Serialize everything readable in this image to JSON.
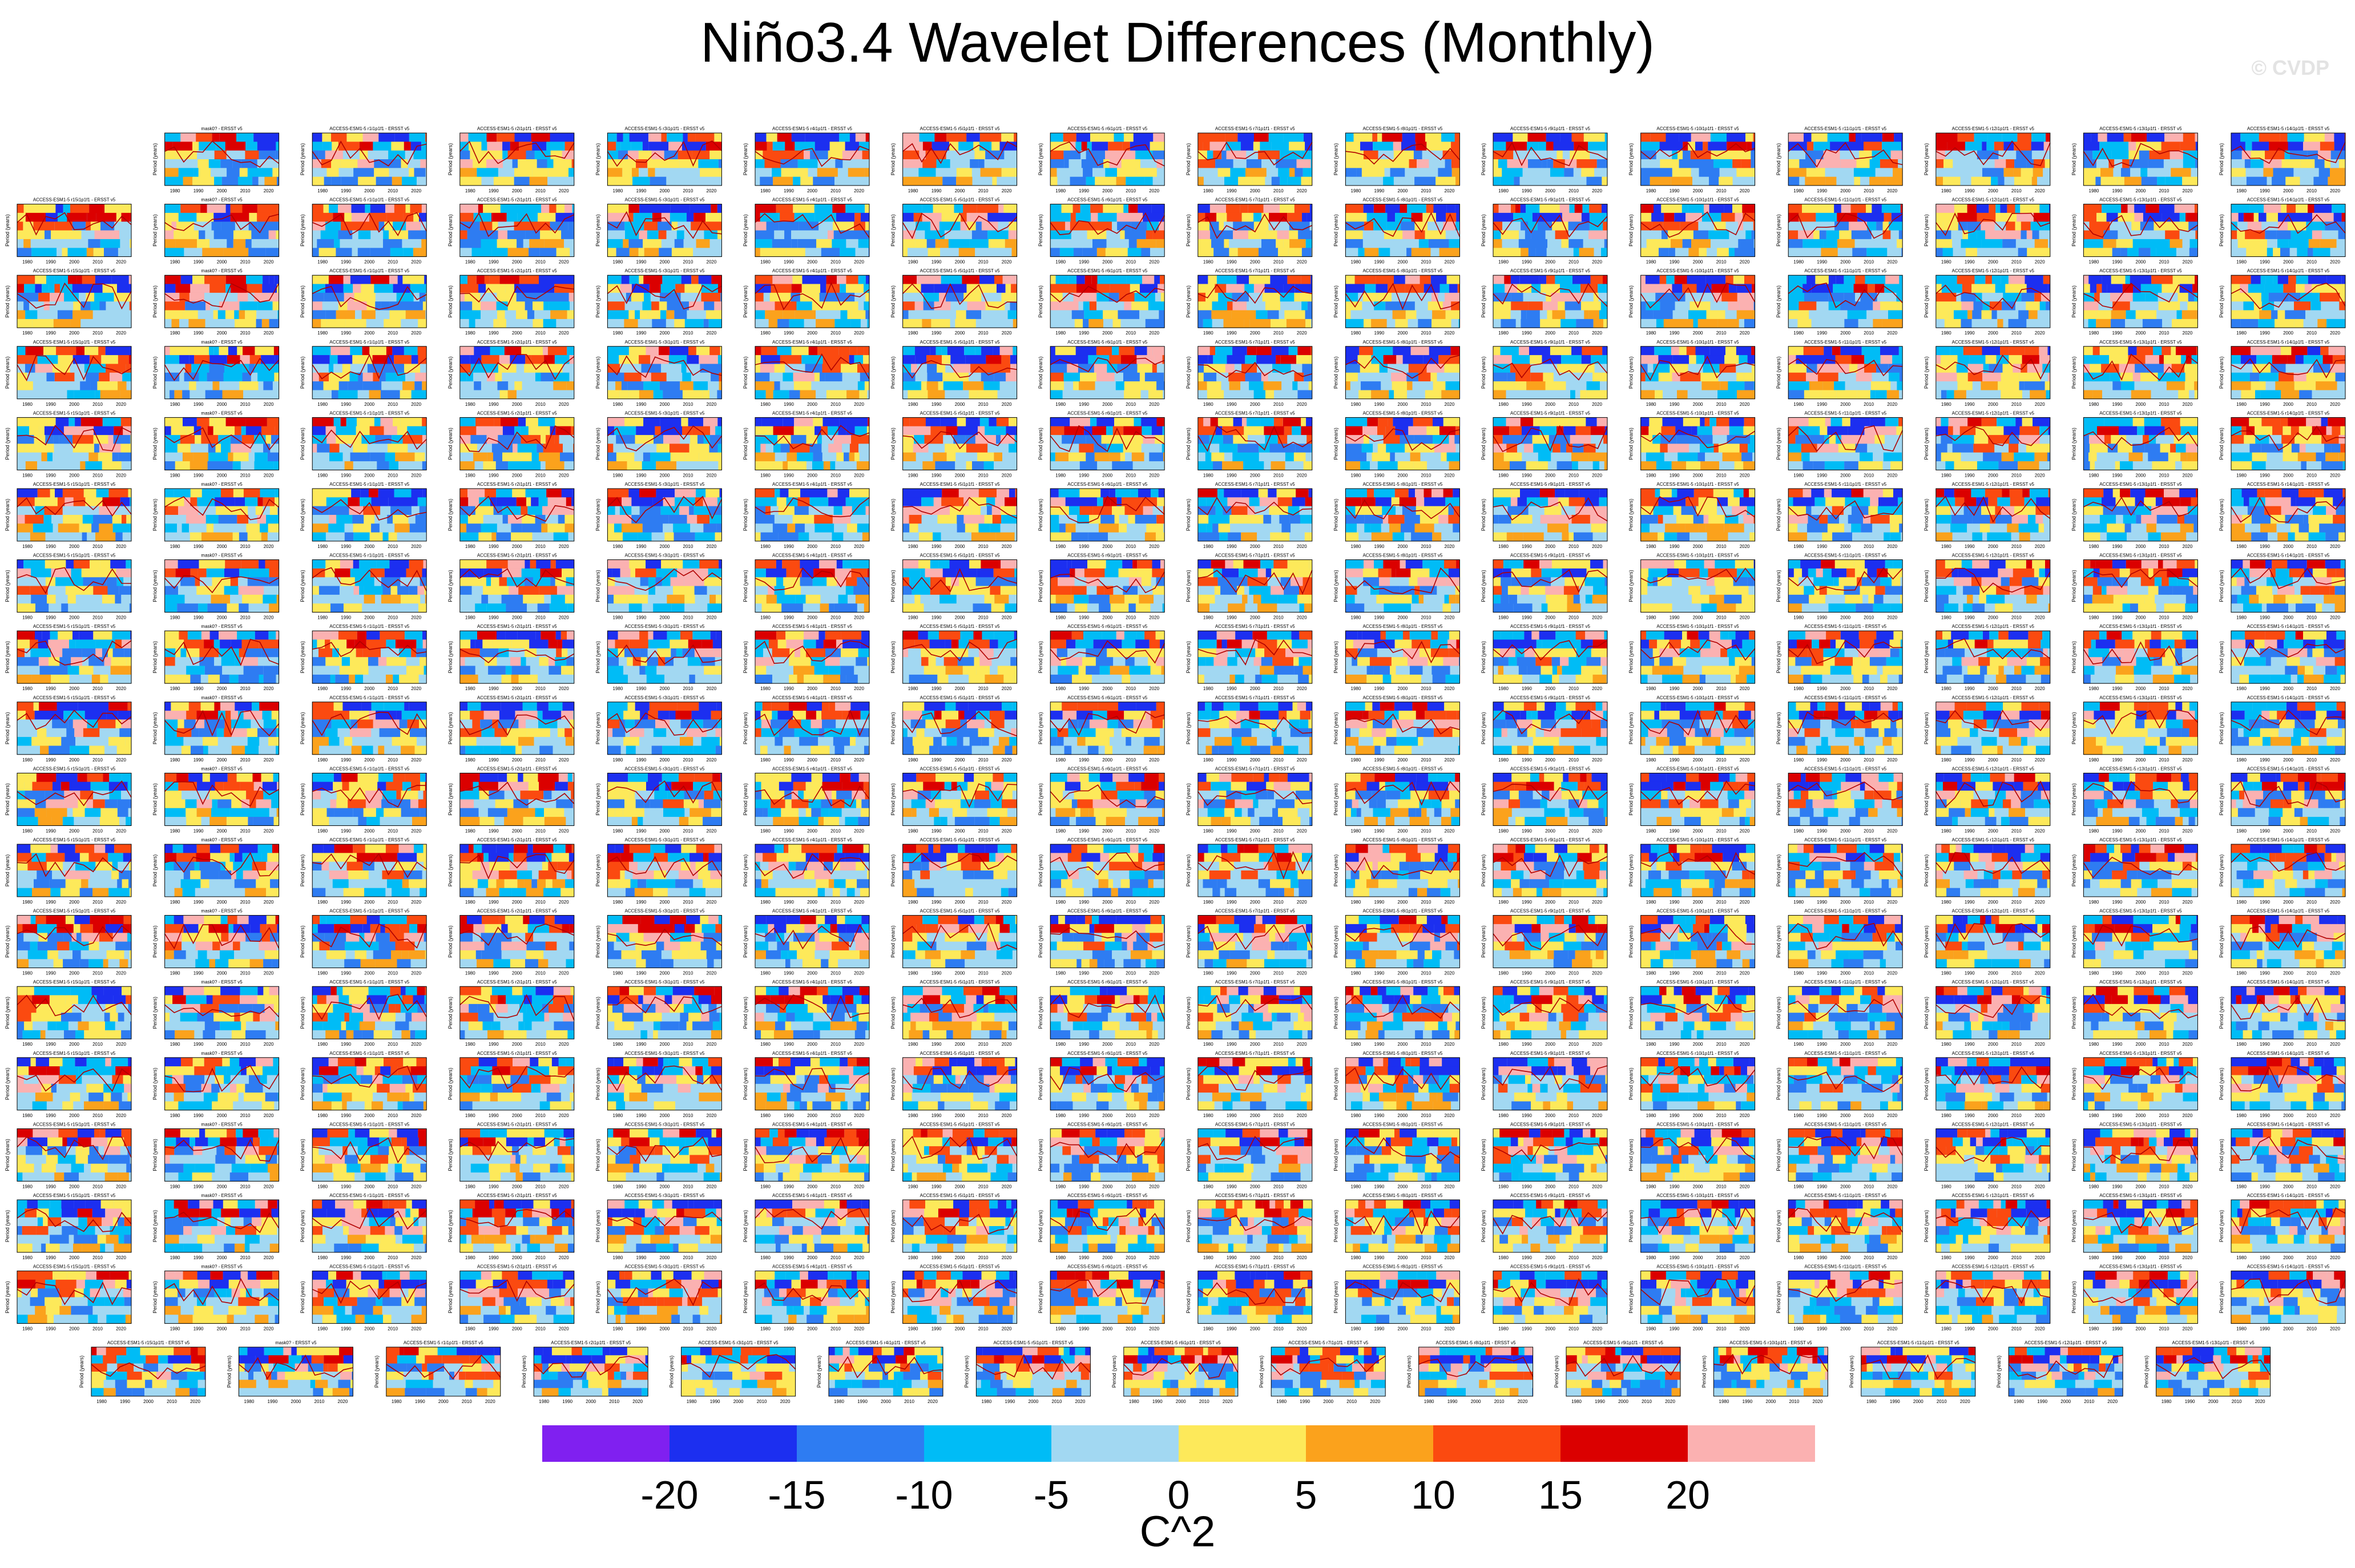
{
  "title": "Niño3.4 Wavelet Differences (Monthly)",
  "watermark": "© CVDP",
  "chart_data": {
    "type": "heatmap",
    "title": "Niño3.4 Wavelet Differences (Monthly)",
    "description_of_panels": "Grid of small wavelet power difference panels (model minus ERSST v5), period (years) vs time",
    "panel_ylabel": "Period (years)",
    "panel_xticks": [
      "1980",
      "1990",
      "2000",
      "2010",
      "2020"
    ],
    "panel_titles": [
      "mask0? - ERSST v5",
      "ACCESS-ESM1-5 r1i1p1f1 - ERSST v5",
      "ACCESS-ESM1-5 r2i1p1f1 - ERSST v5",
      "ACCESS-ESM1-5 r3i1p1f1 - ERSST v5",
      "ACCESS-ESM1-5 r4i1p1f1 - ERSST v5",
      "ACCESS-ESM1-5 r5i1p1f1 - ERSST v5",
      "ACCESS-ESM1-5 r6i1p1f1 - ERSST v5",
      "ACCESS-ESM1-5 r7i1p1f1 - ERSST v5",
      "ACCESS-ESM1-5 r8i1p1f1 - ERSST v5",
      "ACCESS-ESM1-5 r9i1p1f1 - ERSST v5",
      "ACCESS-ESM1-5 r10i1p1f1 - ERSST v5",
      "ACCESS-ESM1-5 r11i1p1f1 - ERSST v5",
      "ACCESS-ESM1-5 r12i1p1f1 - ERSST v5",
      "ACCESS-ESM1-5 r13i1p1f1 - ERSST v5",
      "ACCESS-ESM1-5 r14i1p1f1 - ERSST v5",
      "ACCESS-ESM1-5 r15i1p1f1 - ERSST v5"
    ],
    "colorbar": {
      "colors": [
        "#8020f0",
        "#1c2ff0",
        "#2e7cf2",
        "#00bcf6",
        "#a2d8f2",
        "#fde95a",
        "#fba21c",
        "#fb4a10",
        "#db0000",
        "#fbb1b1"
      ],
      "tick_labels": [
        "-20",
        "-15",
        "-10",
        "-5",
        "0",
        "5",
        "10",
        "15",
        "20"
      ],
      "boundaries": [
        -20,
        -15,
        -10,
        -5,
        0,
        5,
        10,
        15,
        20
      ],
      "units": "C^2"
    }
  }
}
